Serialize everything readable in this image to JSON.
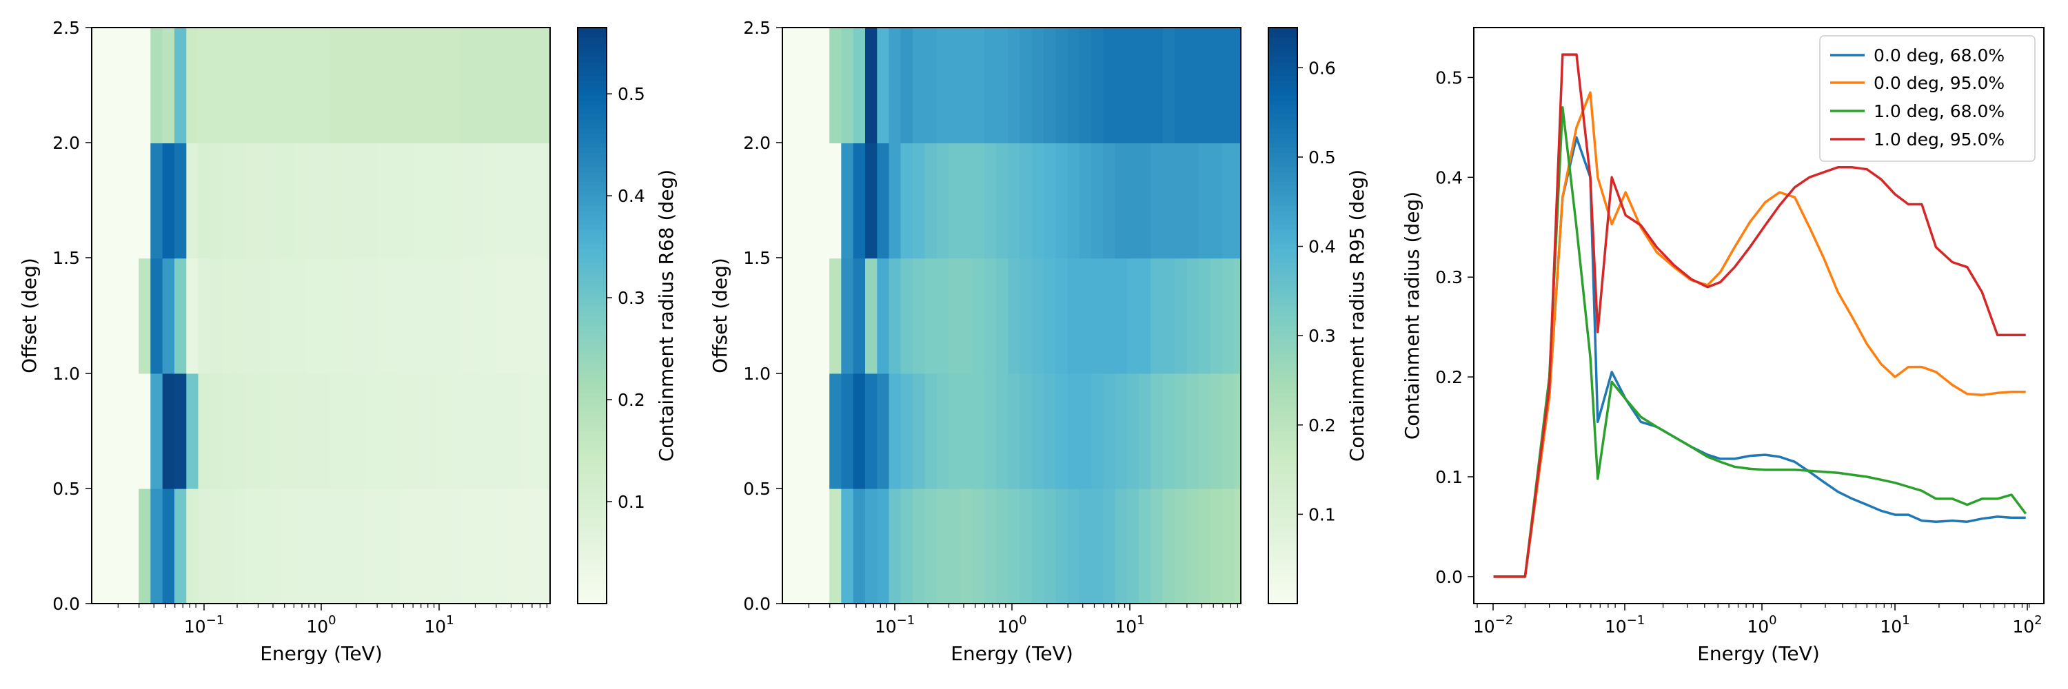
{
  "chart_data": [
    {
      "type": "heatmap",
      "xlabel": "Energy (TeV)",
      "ylabel": "Offset (deg)",
      "xscale": "log",
      "xlim": [
        0.012,
        85
      ],
      "ylim": [
        0,
        2.5
      ],
      "xticks": [
        "10^{-1}",
        "10^{0}",
        "10^{1}"
      ],
      "yticks": [
        "0.0",
        "0.5",
        "1.0",
        "1.5",
        "2.0",
        "2.5"
      ],
      "colorbar": {
        "label": "Containment radius R68 (deg)",
        "colormap": "GnBu",
        "range": [
          0,
          0.565
        ],
        "ticks": [
          "0.1",
          "0.2",
          "0.3",
          "0.4",
          "0.5"
        ]
      },
      "energy_edges": [
        0.0118,
        0.0178,
        0.0237,
        0.0298,
        0.0374,
        0.0472,
        0.0594,
        0.0748,
        0.0941,
        0.118,
        0.149,
        0.188,
        0.237,
        0.298,
        0.374,
        0.472,
        0.594,
        0.748,
        0.941,
        1.18,
        1.49,
        1.88,
        2.37,
        2.98,
        3.74,
        4.72,
        5.94,
        7.48,
        9.41,
        11.8,
        14.9,
        18.8,
        23.7,
        29.8,
        37.4,
        47.2,
        59.4,
        74.8,
        85
      ],
      "offset_edges": [
        0,
        0.5,
        1.0,
        1.5,
        2.0,
        2.5
      ],
      "values": [
        [
          0.0,
          0.0,
          0.0,
          0.21,
          0.41,
          0.47,
          0.3,
          0.1,
          0.085,
          0.082,
          0.078,
          0.074,
          0.072,
          0.07,
          0.068,
          0.066,
          0.065,
          0.064,
          0.063,
          0.062,
          0.061,
          0.06,
          0.059,
          0.058,
          0.057,
          0.056,
          0.055,
          0.054,
          0.053,
          0.052,
          0.051,
          0.05,
          0.049,
          0.048,
          0.047,
          0.046,
          0.045,
          0.044
        ],
        [
          0.0,
          0.0,
          0.0,
          0.0,
          0.38,
          0.56,
          0.55,
          0.3,
          0.1,
          0.095,
          0.09,
          0.087,
          0.085,
          0.083,
          0.081,
          0.079,
          0.078,
          0.077,
          0.076,
          0.075,
          0.074,
          0.073,
          0.072,
          0.071,
          0.07,
          0.069,
          0.068,
          0.067,
          0.066,
          0.065,
          0.064,
          0.063,
          0.062,
          0.061,
          0.06,
          0.059,
          0.058,
          0.057
        ],
        [
          0.0,
          0.0,
          0.0,
          0.17,
          0.47,
          0.4,
          0.28,
          0.05,
          0.08,
          0.085,
          0.082,
          0.08,
          0.078,
          0.076,
          0.075,
          0.074,
          0.073,
          0.072,
          0.071,
          0.07,
          0.069,
          0.068,
          0.067,
          0.066,
          0.065,
          0.064,
          0.063,
          0.062,
          0.061,
          0.06,
          0.059,
          0.058,
          0.057,
          0.056,
          0.055,
          0.054,
          0.053,
          0.052
        ],
        [
          0.0,
          0.0,
          0.0,
          0.0,
          0.45,
          0.5,
          0.47,
          0.08,
          0.1,
          0.095,
          0.09,
          0.088,
          0.086,
          0.085,
          0.084,
          0.083,
          0.082,
          0.081,
          0.08,
          0.079,
          0.078,
          0.077,
          0.076,
          0.075,
          0.074,
          0.073,
          0.072,
          0.071,
          0.07,
          0.069,
          0.068,
          0.067,
          0.066,
          0.065,
          0.064,
          0.063,
          0.062,
          0.061
        ],
        [
          0.0,
          0.0,
          0.0,
          0.0,
          0.2,
          0.18,
          0.32,
          0.14,
          0.13,
          0.13,
          0.13,
          0.13,
          0.13,
          0.13,
          0.13,
          0.13,
          0.13,
          0.13,
          0.13,
          0.14,
          0.14,
          0.14,
          0.14,
          0.14,
          0.14,
          0.14,
          0.14,
          0.14,
          0.14,
          0.14,
          0.15,
          0.15,
          0.15,
          0.15,
          0.15,
          0.15,
          0.15,
          0.15
        ]
      ]
    },
    {
      "type": "heatmap",
      "xlabel": "Energy (TeV)",
      "ylabel": "Offset (deg)",
      "xscale": "log",
      "xlim": [
        0.012,
        85
      ],
      "ylim": [
        0,
        2.5
      ],
      "xticks": [
        "10^{-1}",
        "10^{0}",
        "10^{1}"
      ],
      "yticks": [
        "0.0",
        "0.5",
        "1.0",
        "1.5",
        "2.0",
        "2.5"
      ],
      "colorbar": {
        "label": "Containment radius R95 (deg)",
        "colormap": "GnBu",
        "range": [
          0,
          0.645
        ],
        "ticks": [
          "0.1",
          "0.2",
          "0.3",
          "0.4",
          "0.5",
          "0.6"
        ]
      },
      "values": [
        [
          0.0,
          0.0,
          0.0,
          0.18,
          0.4,
          0.46,
          0.43,
          0.42,
          0.35,
          0.33,
          0.31,
          0.3,
          0.29,
          0.29,
          0.28,
          0.29,
          0.3,
          0.31,
          0.32,
          0.33,
          0.34,
          0.35,
          0.36,
          0.37,
          0.38,
          0.38,
          0.37,
          0.35,
          0.34,
          0.32,
          0.3,
          0.28,
          0.27,
          0.26,
          0.25,
          0.24,
          0.23,
          0.22
        ],
        [
          0.0,
          0.0,
          0.0,
          0.5,
          0.53,
          0.58,
          0.53,
          0.5,
          0.4,
          0.38,
          0.36,
          0.34,
          0.33,
          0.32,
          0.32,
          0.32,
          0.33,
          0.34,
          0.35,
          0.36,
          0.37,
          0.38,
          0.39,
          0.4,
          0.4,
          0.39,
          0.38,
          0.37,
          0.36,
          0.35,
          0.33,
          0.32,
          0.31,
          0.3,
          0.29,
          0.28,
          0.27,
          0.26
        ],
        [
          0.0,
          0.0,
          0.0,
          0.2,
          0.48,
          0.52,
          0.28,
          0.42,
          0.37,
          0.34,
          0.33,
          0.32,
          0.32,
          0.31,
          0.31,
          0.32,
          0.33,
          0.34,
          0.36,
          0.37,
          0.38,
          0.39,
          0.4,
          0.41,
          0.41,
          0.41,
          0.41,
          0.41,
          0.4,
          0.4,
          0.37,
          0.37,
          0.36,
          0.35,
          0.34,
          0.33,
          0.32,
          0.31
        ],
        [
          0.0,
          0.0,
          0.0,
          0.0,
          0.47,
          0.55,
          0.62,
          0.52,
          0.44,
          0.39,
          0.38,
          0.36,
          0.35,
          0.34,
          0.34,
          0.34,
          0.35,
          0.36,
          0.37,
          0.38,
          0.39,
          0.4,
          0.41,
          0.42,
          0.43,
          0.44,
          0.45,
          0.46,
          0.46,
          0.46,
          0.45,
          0.45,
          0.45,
          0.45,
          0.44,
          0.44,
          0.43,
          0.43
        ],
        [
          0.0,
          0.0,
          0.0,
          0.26,
          0.28,
          0.32,
          0.64,
          0.4,
          0.44,
          0.46,
          0.44,
          0.44,
          0.43,
          0.43,
          0.43,
          0.43,
          0.44,
          0.44,
          0.45,
          0.46,
          0.47,
          0.48,
          0.49,
          0.5,
          0.51,
          0.52,
          0.53,
          0.53,
          0.53,
          0.53,
          0.53,
          0.52,
          0.53,
          0.53,
          0.53,
          0.53,
          0.53,
          0.53
        ]
      ]
    },
    {
      "type": "line",
      "xlabel": "Energy (TeV)",
      "ylabel": "Containment radius (deg)",
      "xscale": "log",
      "xlim": [
        0.0085,
        115
      ],
      "ylim": [
        -0.027,
        0.55
      ],
      "xticks": [
        "10^{-2}",
        "10^{-1}",
        "10^{0}",
        "10^{1}",
        "10^{2}"
      ],
      "yticks": [
        "0.0",
        "0.1",
        "0.2",
        "0.3",
        "0.4",
        "0.5"
      ],
      "legend": "upper right",
      "x": [
        0.0118,
        0.02,
        0.03,
        0.0374,
        0.0472,
        0.0594,
        0.0672,
        0.085,
        0.107,
        0.138,
        0.18,
        0.24,
        0.32,
        0.42,
        0.52,
        0.66,
        0.85,
        1.1,
        1.4,
        1.8,
        2.3,
        2.9,
        3.7,
        4.7,
        6.0,
        7.6,
        9.6,
        12.0,
        15.0,
        19.0,
        25.0,
        32.0,
        41.0,
        53.0,
        67.0,
        85.0
      ],
      "series": [
        {
          "name": "0.0 deg, 68.0%",
          "color": "#1f77b4",
          "values": [
            0.0,
            0.0,
            0.18,
            0.38,
            0.44,
            0.4,
            0.155,
            0.205,
            0.178,
            0.155,
            0.15,
            0.14,
            0.13,
            0.122,
            0.118,
            0.118,
            0.121,
            0.122,
            0.12,
            0.115,
            0.105,
            0.095,
            0.085,
            0.078,
            0.072,
            0.066,
            0.062,
            0.062,
            0.056,
            0.055,
            0.056,
            0.055,
            0.058,
            0.06,
            0.059,
            0.059
          ]
        },
        {
          "name": "0.0 deg, 95.0%",
          "color": "#ff7f0e",
          "values": [
            0.0,
            0.0,
            0.18,
            0.38,
            0.45,
            0.485,
            0.4,
            0.353,
            0.385,
            0.35,
            0.325,
            0.31,
            0.297,
            0.292,
            0.305,
            0.33,
            0.355,
            0.375,
            0.385,
            0.38,
            0.35,
            0.32,
            0.285,
            0.26,
            0.233,
            0.213,
            0.2,
            0.21,
            0.21,
            0.205,
            0.192,
            0.183,
            0.182,
            0.184,
            0.185,
            0.185
          ]
        },
        {
          "name": "1.0 deg, 68.0%",
          "color": "#2ca02c",
          "values": [
            0.0,
            0.0,
            0.2,
            0.47,
            0.35,
            0.22,
            0.098,
            0.195,
            0.178,
            0.16,
            0.15,
            0.14,
            0.13,
            0.12,
            0.115,
            0.11,
            0.108,
            0.107,
            0.107,
            0.107,
            0.106,
            0.105,
            0.104,
            0.102,
            0.1,
            0.097,
            0.094,
            0.09,
            0.086,
            0.078,
            0.078,
            0.072,
            0.078,
            0.078,
            0.082,
            0.063
          ]
        },
        {
          "name": "1.0 deg, 95.0%",
          "color": "#d62728",
          "values": [
            0.0,
            0.0,
            0.19,
            0.523,
            0.523,
            0.4,
            0.245,
            0.4,
            0.362,
            0.352,
            0.33,
            0.312,
            0.298,
            0.29,
            0.295,
            0.31,
            0.33,
            0.352,
            0.372,
            0.39,
            0.4,
            0.405,
            0.41,
            0.41,
            0.408,
            0.398,
            0.383,
            0.373,
            0.373,
            0.33,
            0.315,
            0.31,
            0.285,
            0.242,
            0.242,
            0.242
          ]
        }
      ]
    }
  ]
}
